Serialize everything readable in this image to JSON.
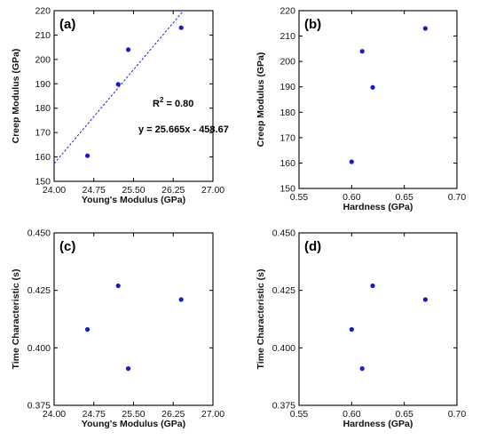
{
  "figure": {
    "colors": {
      "points": "#1a1acc",
      "fit_line": "#1a1acc",
      "axes": "#000000"
    }
  },
  "chart_data": [
    {
      "type": "scatter",
      "panel_label": "(a)",
      "xlabel": "Young's Modulus (GPa)",
      "ylabel": "Creep Modulus (GPa)",
      "xlim": [
        24.0,
        27.0
      ],
      "ylim": [
        150,
        220
      ],
      "xticks": [
        24.0,
        24.75,
        25.5,
        26.25,
        27.0
      ],
      "xtick_labels": [
        "24.00",
        "24.75",
        "25.50",
        "26.25",
        "27.00"
      ],
      "yticks": [
        150,
        160,
        170,
        180,
        190,
        200,
        210,
        220
      ],
      "ytick_labels": [
        "150",
        "160",
        "170",
        "180",
        "190",
        "200",
        "210",
        "220"
      ],
      "x": [
        24.63,
        25.21,
        25.4,
        26.4
      ],
      "y": [
        160.5,
        189.8,
        204.0,
        213.0
      ],
      "fit": {
        "slope": 25.665,
        "intercept": -458.67,
        "style": "dashed"
      },
      "annotations": [
        "R² = 0.80",
        "y = 25.665x - 458.67"
      ],
      "r2_prefix": "R",
      "r2_sup": "2",
      "r2_suffix": " = 0.80",
      "equation": "y = 25.665x - 458.67",
      "grid": false
    },
    {
      "type": "scatter",
      "panel_label": "(b)",
      "xlabel": "Hardness (GPa)",
      "ylabel": "Creep Modulus (GPa)",
      "xlim": [
        0.55,
        0.7
      ],
      "ylim": [
        150,
        220
      ],
      "xticks": [
        0.55,
        0.6,
        0.65,
        0.7
      ],
      "xtick_labels": [
        "0.55",
        "0.60",
        "0.65",
        "0.70"
      ],
      "yticks": [
        150,
        160,
        170,
        180,
        190,
        200,
        210,
        220
      ],
      "ytick_labels": [
        "150",
        "160",
        "170",
        "180",
        "190",
        "200",
        "210",
        "220"
      ],
      "x": [
        0.6,
        0.61,
        0.62,
        0.67
      ],
      "y": [
        160.5,
        204.0,
        189.8,
        213.0
      ],
      "grid": false
    },
    {
      "type": "scatter",
      "panel_label": "(c)",
      "xlabel": "Young's Modulus (GPa)",
      "ylabel": "Time Characteristic (s)",
      "xlim": [
        24.0,
        27.0
      ],
      "ylim": [
        0.375,
        0.45
      ],
      "xticks": [
        24.0,
        24.75,
        25.5,
        26.25,
        27.0
      ],
      "xtick_labels": [
        "24.00",
        "24.75",
        "25.50",
        "26.25",
        "27.00"
      ],
      "yticks": [
        0.375,
        0.4,
        0.425,
        0.45
      ],
      "ytick_labels": [
        "0.375",
        "0.400",
        "0.425",
        "0.450"
      ],
      "x": [
        24.63,
        25.21,
        25.4,
        26.4
      ],
      "y": [
        0.408,
        0.427,
        0.391,
        0.421
      ],
      "grid": false
    },
    {
      "type": "scatter",
      "panel_label": "(d)",
      "xlabel": "Hardness (GPa)",
      "ylabel": "Time Characteristic (s)",
      "xlim": [
        0.55,
        0.7
      ],
      "ylim": [
        0.375,
        0.45
      ],
      "xticks": [
        0.55,
        0.6,
        0.65,
        0.7
      ],
      "xtick_labels": [
        "0.55",
        "0.60",
        "0.65",
        "0.70"
      ],
      "yticks": [
        0.375,
        0.4,
        0.425,
        0.45
      ],
      "ytick_labels": [
        "0.375",
        "0.400",
        "0.425",
        "0.450"
      ],
      "x": [
        0.6,
        0.61,
        0.62,
        0.67
      ],
      "y": [
        0.408,
        0.391,
        0.427,
        0.421
      ],
      "grid": false
    }
  ]
}
